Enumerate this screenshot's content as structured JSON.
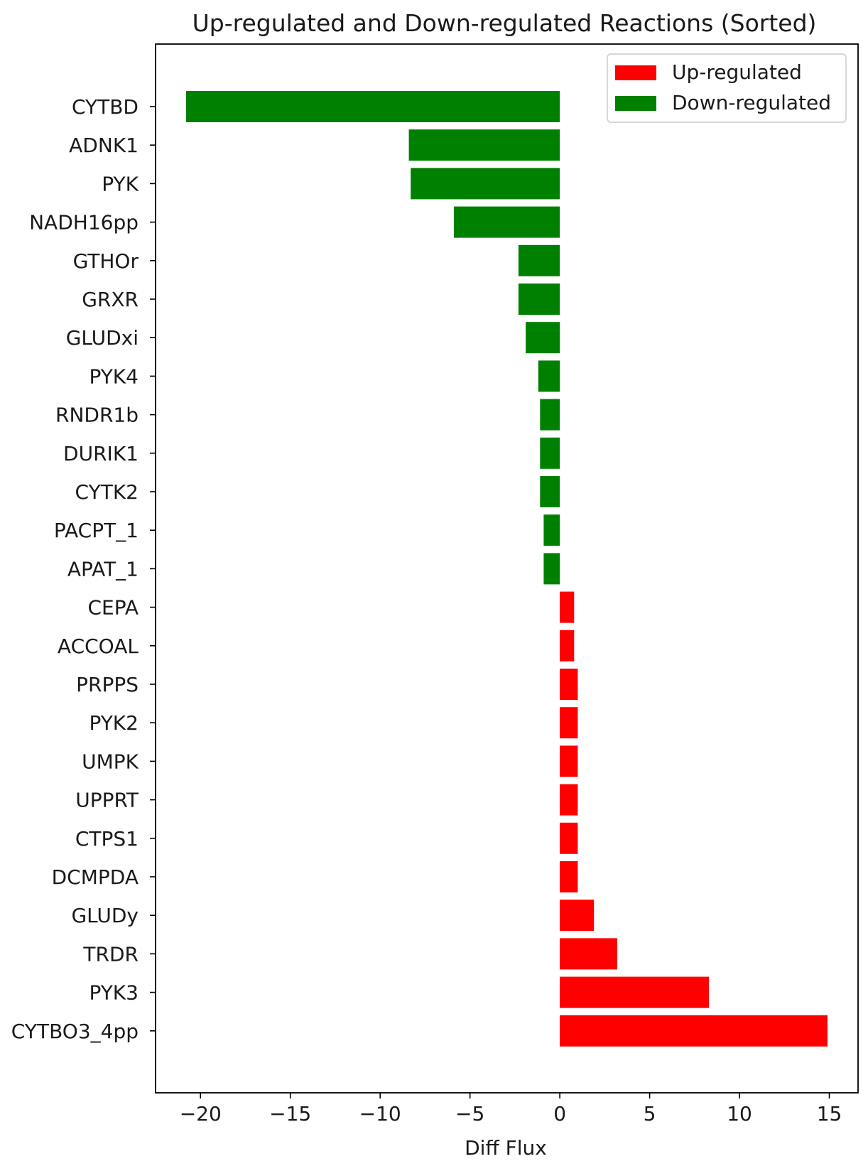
{
  "chart_data": {
    "type": "bar",
    "orientation": "horizontal",
    "title": "Up-regulated and Down-regulated Reactions (Sorted)",
    "xlabel": "Diff Flux",
    "ylabel": "",
    "xlim": [
      -22.5,
      16.6
    ],
    "xticks": [
      -20,
      -15,
      -10,
      -5,
      0,
      5,
      10,
      15
    ],
    "xtick_labels": [
      "−20",
      "−15",
      "−10",
      "−5",
      "0",
      "5",
      "10",
      "15"
    ],
    "categories": [
      "CYTBD",
      "ADNK1",
      "PYK",
      "NADH16pp",
      "GTHOr",
      "GRXR",
      "GLUDxi",
      "PYK4",
      "RNDR1b",
      "DURIK1",
      "CYTK2",
      "PACPT_1",
      "APAT_1",
      "CEPA",
      "ACCOAL",
      "PRPPS",
      "PYK2",
      "UMPK",
      "UPPRT",
      "CTPS1",
      "DCMPDA",
      "GLUDy",
      "TRDR",
      "PYK3",
      "CYTBO3_4pp"
    ],
    "values": [
      -20.8,
      -8.4,
      -8.3,
      -5.9,
      -2.3,
      -2.3,
      -1.9,
      -1.2,
      -1.1,
      -1.1,
      -1.1,
      -0.9,
      -0.9,
      0.8,
      0.8,
      1.0,
      1.0,
      1.0,
      1.0,
      1.0,
      1.0,
      1.9,
      3.2,
      8.3,
      14.9
    ],
    "colors": {
      "up": "#ff0000",
      "down": "#008000"
    },
    "legend": {
      "position": "top-right",
      "entries": [
        {
          "label": "Up-regulated",
          "color": "#ff0000"
        },
        {
          "label": "Down-regulated",
          "color": "#008000"
        }
      ]
    },
    "grid": false
  }
}
